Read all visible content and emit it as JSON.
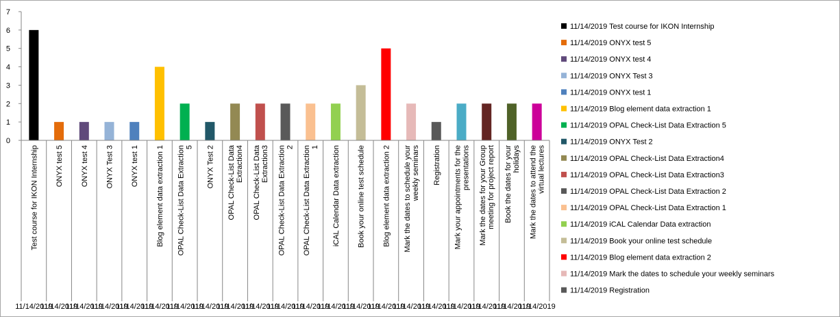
{
  "chart_data": {
    "type": "bar",
    "title": "",
    "xlabel": "",
    "ylabel": "",
    "ylim": [
      0,
      7
    ],
    "yticks": [
      0,
      1,
      2,
      3,
      4,
      5,
      6,
      7
    ],
    "grid": false,
    "legend_position": "right",
    "categories": [
      {
        "label": "Test course for IKON Internship",
        "date": "11/14/2019",
        "value": 6,
        "color": "#000000"
      },
      {
        "label": "ONYX test 5",
        "date": "11/14/2019",
        "value": 1,
        "color": "#e46c0a"
      },
      {
        "label": "ONYX test 4",
        "date": "11/14/2019",
        "value": 1,
        "color": "#604a7b"
      },
      {
        "label": "ONYX Test 3",
        "date": "11/14/2019",
        "value": 1,
        "color": "#95b3d7"
      },
      {
        "label": "ONYX test 1",
        "date": "11/14/2019",
        "value": 1,
        "color": "#4f81bd"
      },
      {
        "label": "Blog element data extraction 1",
        "date": "11/14/2019",
        "value": 4,
        "color": "#ffc000"
      },
      {
        "label": "OPAL Check-List Data Extraction 5",
        "date": "11/14/2019",
        "value": 2,
        "color": "#00b050"
      },
      {
        "label": "ONYX Test 2",
        "date": "11/14/2019",
        "value": 1,
        "color": "#215868"
      },
      {
        "label": "OPAL Check-List Data Extraction4",
        "date": "11/14/2019",
        "value": 2,
        "color": "#938953"
      },
      {
        "label": "OPAL Check-List Data Extraction3",
        "date": "11/14/2019",
        "value": 2,
        "color": "#c0504d"
      },
      {
        "label": "OPAL Check-List Data Extraction 2",
        "date": "11/14/2019",
        "value": 2,
        "color": "#595959"
      },
      {
        "label": "OPAL Check-List Data Extraction 1",
        "date": "11/14/2019",
        "value": 2,
        "color": "#fac090"
      },
      {
        "label": "iCAL Calendar Data extraction",
        "date": "11/14/2019",
        "value": 2,
        "color": "#92d050"
      },
      {
        "label": "Book your online test schedule",
        "date": "11/14/2019",
        "value": 3,
        "color": "#c4bd97"
      },
      {
        "label": "Blog element data extraction 2",
        "date": "11/14/2019",
        "value": 5,
        "color": "#ff0000"
      },
      {
        "label": "Mark the dates to schedule your weekly seminars",
        "date": "11/14/2019",
        "value": 2,
        "color": "#e6b9b8"
      },
      {
        "label": "Registration",
        "date": "11/14/2019",
        "value": 1,
        "color": "#595959"
      },
      {
        "label": "Mark your appointments for the presentations",
        "date": "11/14/2019",
        "value": 2,
        "color": "#4bacc6"
      },
      {
        "label": "Mark the dates for your Group meeting for project report",
        "date": "11/14/2019",
        "value": 2,
        "color": "#632523"
      },
      {
        "label": "Book the dates for your holidays",
        "date": "11/14/2019",
        "value": 2,
        "color": "#4f6228"
      },
      {
        "label": "Mark the dates to attend the virtual lectures",
        "date": "11/14/2019",
        "value": 2,
        "color": "#cc0099"
      }
    ],
    "legend": [
      {
        "label": "11/14/2019 Test course for IKON Internship",
        "color": "#000000"
      },
      {
        "label": "11/14/2019 ONYX test 5",
        "color": "#e46c0a"
      },
      {
        "label": "11/14/2019 ONYX test 4",
        "color": "#604a7b"
      },
      {
        "label": "11/14/2019 ONYX Test 3",
        "color": "#95b3d7"
      },
      {
        "label": "11/14/2019 ONYX test 1",
        "color": "#4f81bd"
      },
      {
        "label": "11/14/2019 Blog element data extraction 1",
        "color": "#ffc000"
      },
      {
        "label": "11/14/2019 OPAL Check-List Data Extraction 5",
        "color": "#00b050"
      },
      {
        "label": "11/14/2019 ONYX Test 2",
        "color": "#215868"
      },
      {
        "label": "11/14/2019 OPAL Check-List Data Extraction4",
        "color": "#938953"
      },
      {
        "label": "11/14/2019 OPAL Check-List Data Extraction3",
        "color": "#c0504d"
      },
      {
        "label": "11/14/2019 OPAL Check-List Data Extraction 2",
        "color": "#595959"
      },
      {
        "label": "11/14/2019 OPAL Check-List Data Extraction 1",
        "color": "#fac090"
      },
      {
        "label": "11/14/2019 iCAL Calendar Data extraction",
        "color": "#92d050"
      },
      {
        "label": "11/14/2019 Book your online test schedule",
        "color": "#c4bd97"
      },
      {
        "label": "11/14/2019 Blog element data extraction 2",
        "color": "#ff0000"
      },
      {
        "label": "11/14/2019 Mark the dates to schedule your weekly seminars",
        "color": "#e6b9b8"
      },
      {
        "label": "11/14/2019 Registration",
        "color": "#595959"
      }
    ]
  }
}
